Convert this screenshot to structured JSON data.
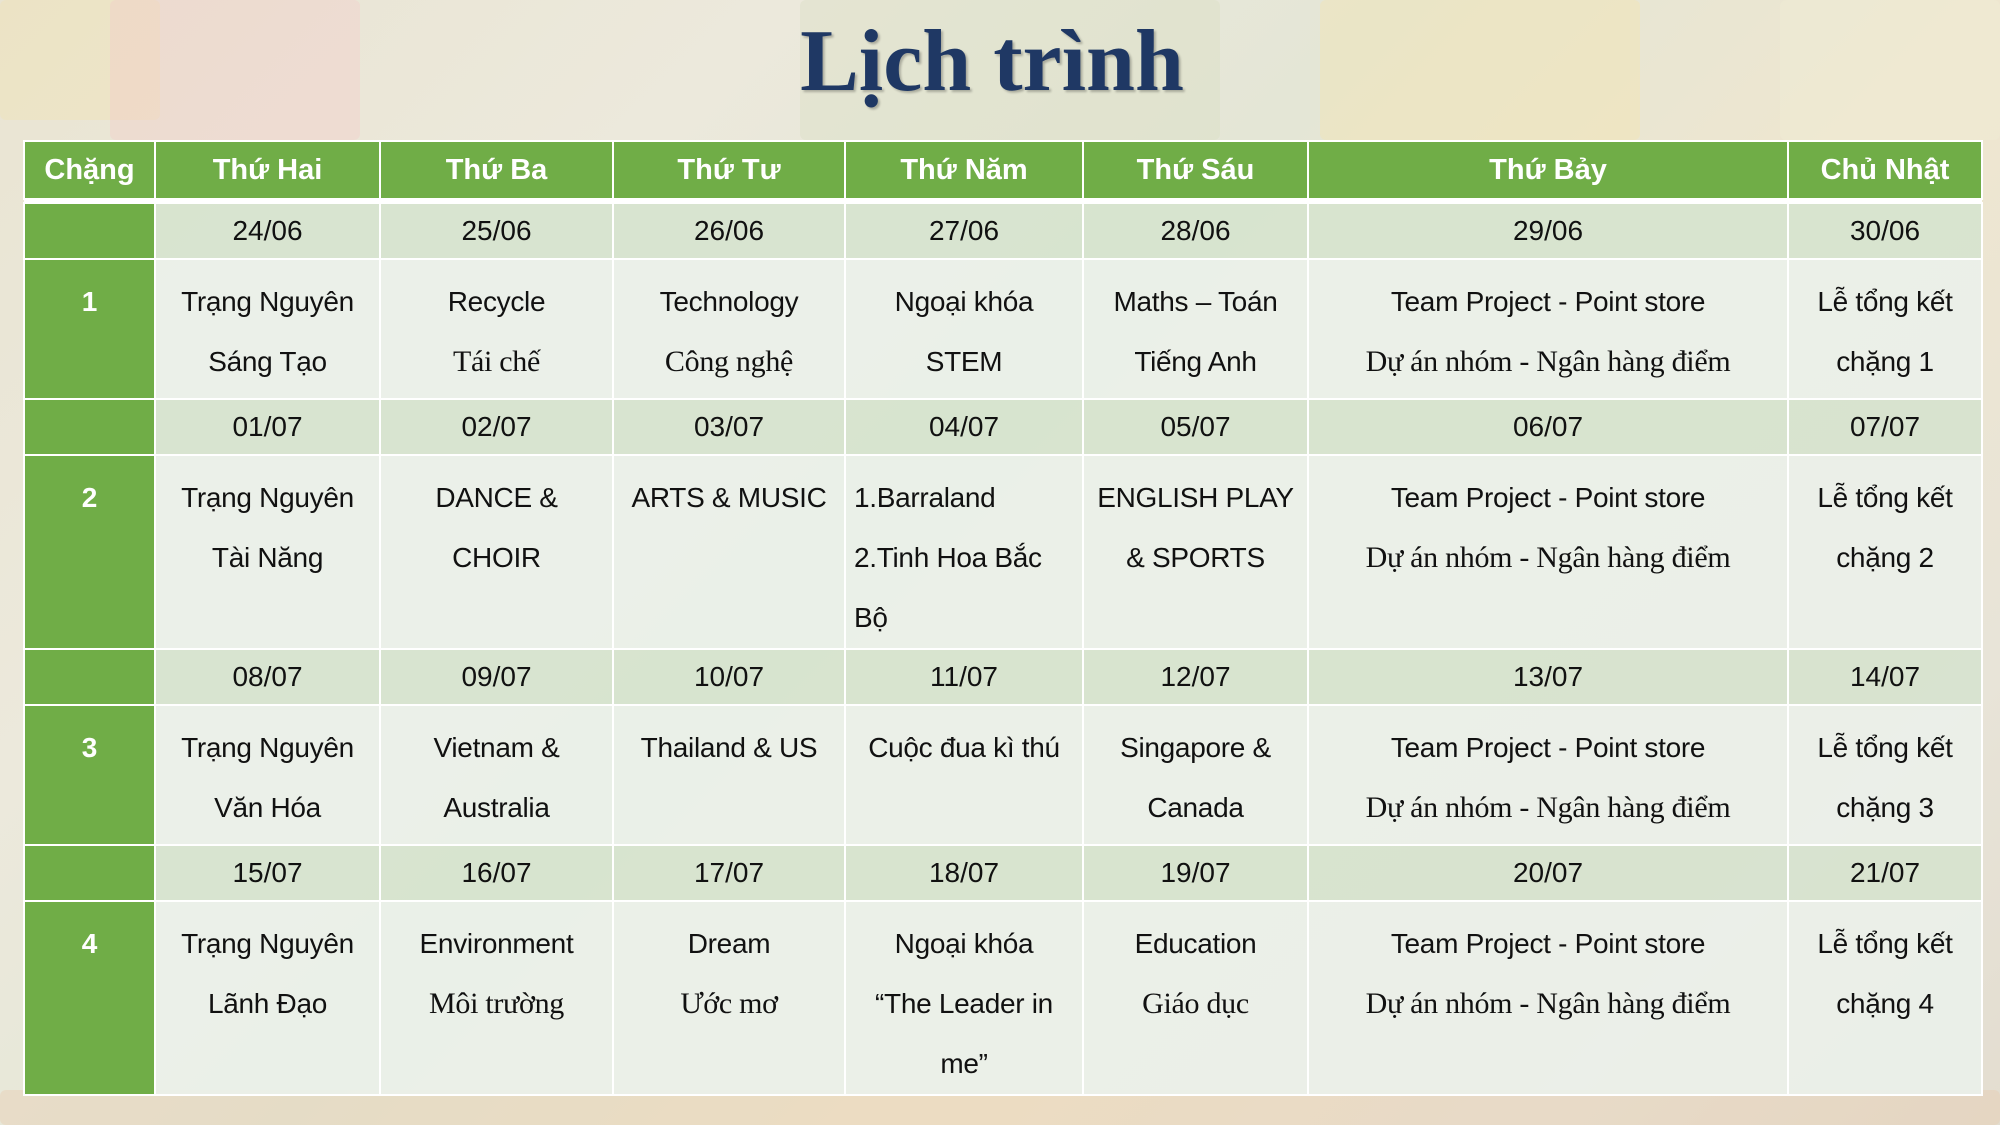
{
  "title": "Lịch trình",
  "colors": {
    "header_green": "#70ad47",
    "title_navy": "#1f3864",
    "date_row": "#d6e3cf",
    "content_row": "#ebf0e9"
  },
  "headers": [
    "Chặng",
    "Thứ Hai",
    "Thứ Ba",
    "Thứ Tư",
    "Thứ Năm",
    "Thứ Sáu",
    "Thứ Bảy",
    "Chủ Nhật"
  ],
  "stages": [
    {
      "number": "1",
      "dates": [
        "24/06",
        "25/06",
        "26/06",
        "27/06",
        "28/06",
        "29/06",
        "30/06"
      ],
      "activities": [
        {
          "lines": [
            "Trạng Nguyên",
            "Sáng Tạo"
          ]
        },
        {
          "lines": [
            "Recycle",
            "Tái chế"
          ],
          "serif": [
            1
          ]
        },
        {
          "lines": [
            "Technology",
            "Công nghệ"
          ],
          "serif": [
            1
          ]
        },
        {
          "lines": [
            "Ngoại khóa",
            "STEM"
          ]
        },
        {
          "lines": [
            "Maths – Toán",
            "Tiếng Anh"
          ]
        },
        {
          "lines": [
            "Team Project - Point store",
            "Dự án nhóm  - Ngân hàng điểm"
          ],
          "serif": [
            1
          ]
        },
        {
          "lines": [
            "Lễ tổng kết",
            "chặng 1"
          ]
        }
      ]
    },
    {
      "number": "2",
      "dates": [
        "01/07",
        "02/07",
        "03/07",
        "04/07",
        "05/07",
        "06/07",
        "07/07"
      ],
      "activities": [
        {
          "lines": [
            "Trạng Nguyên",
            "Tài Năng"
          ]
        },
        {
          "lines": [
            "DANCE &",
            "CHOIR"
          ]
        },
        {
          "lines": [
            "ARTS & MUSIC"
          ]
        },
        {
          "lines": [
            "1.Barraland",
            "2.Tinh Hoa Bắc",
            "Bộ"
          ],
          "align": "left"
        },
        {
          "lines": [
            "ENGLISH PLAY",
            "& SPORTS"
          ]
        },
        {
          "lines": [
            "Team Project - Point store",
            "Dự án nhóm  - Ngân hàng điểm"
          ],
          "serif": [
            1
          ]
        },
        {
          "lines": [
            "Lễ tổng kết",
            "chặng 2"
          ]
        }
      ]
    },
    {
      "number": "3",
      "dates": [
        "08/07",
        "09/07",
        "10/07",
        "11/07",
        "12/07",
        "13/07",
        "14/07"
      ],
      "activities": [
        {
          "lines": [
            "Trạng Nguyên",
            "Văn Hóa"
          ]
        },
        {
          "lines": [
            "Vietnam &",
            "Australia"
          ]
        },
        {
          "lines": [
            "Thailand & US"
          ]
        },
        {
          "lines": [
            "Cuộc đua kì thú"
          ]
        },
        {
          "lines": [
            "Singapore &",
            "Canada"
          ]
        },
        {
          "lines": [
            "Team Project - Point store",
            "Dự án nhóm  - Ngân hàng điểm"
          ],
          "serif": [
            1
          ]
        },
        {
          "lines": [
            "Lễ tổng kết",
            "chặng 3"
          ]
        }
      ]
    },
    {
      "number": "4",
      "dates": [
        "15/07",
        "16/07",
        "17/07",
        "18/07",
        "19/07",
        "20/07",
        "21/07"
      ],
      "activities": [
        {
          "lines": [
            "Trạng Nguyên",
            "Lãnh Đạo"
          ]
        },
        {
          "lines": [
            "Environment",
            "Môi trường"
          ],
          "serif": [
            1
          ]
        },
        {
          "lines": [
            "Dream",
            "Ước mơ"
          ],
          "serif": [
            1
          ]
        },
        {
          "lines": [
            "Ngoại khóa",
            "“The Leader in",
            "me”"
          ]
        },
        {
          "lines": [
            "Education",
            "Giáo dục"
          ],
          "serif": [
            1
          ]
        },
        {
          "lines": [
            "Team Project - Point store",
            "Dự án nhóm  - Ngân hàng điểm"
          ],
          "serif": [
            1
          ]
        },
        {
          "lines": [
            "Lễ tổng kết",
            "chặng  4"
          ]
        }
      ]
    }
  ]
}
